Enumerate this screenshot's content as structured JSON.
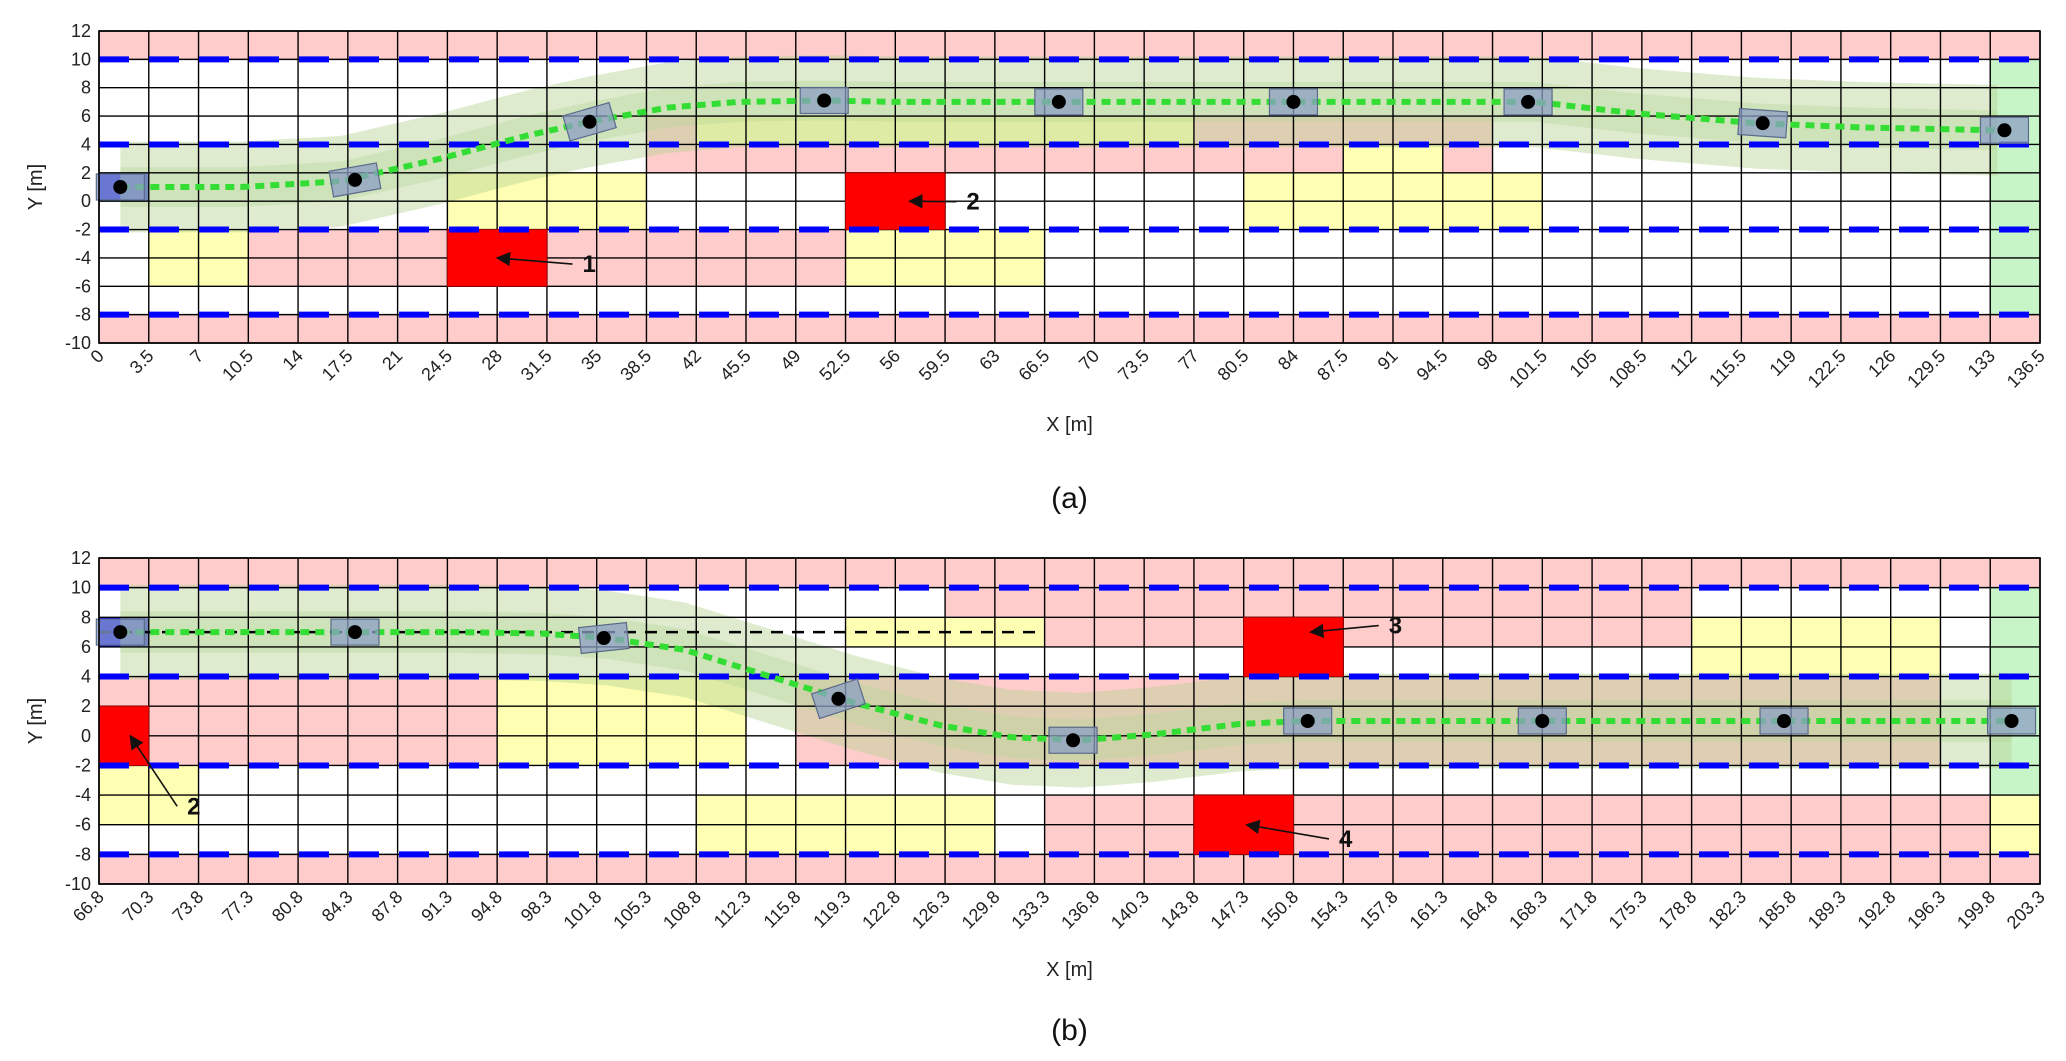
{
  "chart_data": [
    {
      "type": "heatmap",
      "panel": "a",
      "caption": "(a)",
      "xlabel": "X [m]",
      "ylabel": "Y [m]",
      "xlim": [
        0,
        136.5
      ],
      "ylim": [
        -10,
        12
      ],
      "cell_size": [
        3.5,
        2
      ],
      "xticks": [
        0,
        3.5,
        7,
        10.5,
        14,
        17.5,
        21,
        24.5,
        28,
        31.5,
        35,
        38.5,
        42,
        45.5,
        49,
        52.5,
        56,
        59.5,
        63,
        66.5,
        70,
        73.5,
        77,
        80.5,
        84,
        87.5,
        91,
        94.5,
        98,
        101.5,
        105,
        108.5,
        112,
        115.5,
        119,
        122.5,
        126,
        129.5,
        133,
        136.5
      ],
      "xtick_labels": [
        "0",
        "3.5",
        "7",
        "10.5",
        "14",
        "17.5",
        "21",
        "24.5",
        "28",
        "31.5",
        "35",
        "38.5",
        "42",
        "45.5",
        "49",
        "52.5",
        "56",
        "59.5",
        "63",
        "66.5",
        "70",
        "73.5",
        "77",
        "80.5",
        "84",
        "87.5",
        "91",
        "94.5",
        "98",
        "101.5",
        "105",
        "108.5",
        "112",
        "115.5",
        "119",
        "122.5",
        "126",
        "129.5",
        "133",
        "136.5"
      ],
      "yticks": [
        -10,
        -8,
        -6,
        -4,
        -2,
        0,
        2,
        4,
        6,
        8,
        10,
        12
      ],
      "ytick_labels": [
        "-10",
        "-8",
        "-6",
        "-4",
        "-2",
        "0",
        "2",
        "4",
        "6",
        "8",
        "10",
        "12"
      ],
      "lane_lines_y": [
        10,
        4,
        -2,
        -8
      ],
      "zones": [
        {
          "kind": "pink",
          "x": [
            0,
            136.5
          ],
          "y": [
            10,
            12
          ]
        },
        {
          "kind": "pink",
          "x": [
            0,
            136.5
          ],
          "y": [
            -10,
            -8
          ]
        },
        {
          "kind": "pink",
          "x": [
            38.5,
            98
          ],
          "y": [
            2,
            6
          ]
        },
        {
          "kind": "pink",
          "x": [
            10.5,
            59.5
          ],
          "y": [
            -6,
            -2
          ]
        },
        {
          "kind": "yellow",
          "x": [
            42,
            77
          ],
          "y": [
            4,
            6
          ]
        },
        {
          "kind": "yellow",
          "x": [
            24.5,
            38.5
          ],
          "y": [
            -2,
            2
          ]
        },
        {
          "kind": "yellow",
          "x": [
            3.5,
            10.5
          ],
          "y": [
            -6,
            -2
          ]
        },
        {
          "kind": "yellow",
          "x": [
            52.5,
            66.5
          ],
          "y": [
            -6,
            -2
          ]
        },
        {
          "kind": "yellow",
          "x": [
            80.5,
            101.5
          ],
          "y": [
            -2,
            2
          ]
        },
        {
          "kind": "yellow",
          "x": [
            87.5,
            94.5
          ],
          "y": [
            2,
            4
          ]
        },
        {
          "kind": "start",
          "x": [
            0,
            3.5
          ],
          "y": [
            0,
            2
          ]
        },
        {
          "kind": "goal",
          "x": [
            133,
            136.5
          ],
          "y": [
            -8,
            10
          ]
        },
        {
          "kind": "obstacle",
          "x": [
            24.5,
            31.5
          ],
          "y": [
            -6,
            -2
          ]
        },
        {
          "kind": "obstacle",
          "x": [
            52.5,
            59.5
          ],
          "y": [
            -2,
            2
          ]
        }
      ],
      "trajectory": {
        "x": [
          1.5,
          10,
          17,
          24,
          30,
          34.5,
          40,
          45,
          51,
          56,
          62,
          67,
          75,
          84,
          92,
          101,
          108,
          116.5,
          124,
          133.5
        ],
        "y": [
          1.0,
          1.0,
          1.4,
          3.0,
          4.6,
          5.6,
          6.6,
          7.0,
          7.1,
          7.0,
          7.0,
          7.0,
          7.0,
          7.0,
          7.0,
          7.0,
          6.2,
          5.5,
          5.2,
          5.0
        ]
      },
      "vehicle_poses": [
        {
          "x": 1.5,
          "y": 1.0,
          "angle": 0
        },
        {
          "x": 18,
          "y": 1.5,
          "angle": 10
        },
        {
          "x": 34.5,
          "y": 5.6,
          "angle": 16
        },
        {
          "x": 51,
          "y": 7.1,
          "angle": 0
        },
        {
          "x": 67.5,
          "y": 7.0,
          "angle": 0
        },
        {
          "x": 84,
          "y": 7.0,
          "angle": 0
        },
        {
          "x": 100.5,
          "y": 7.0,
          "angle": 0
        },
        {
          "x": 117,
          "y": 5.5,
          "angle": -4
        },
        {
          "x": 134,
          "y": 5.0,
          "angle": 0
        }
      ],
      "annotations": [
        {
          "label": "1",
          "point": [
            28,
            -4
          ],
          "text_at": [
            34,
            -5
          ]
        },
        {
          "label": "2",
          "point": [
            57,
            0
          ],
          "text_at": [
            61,
            -0.6
          ]
        }
      ]
    },
    {
      "type": "heatmap",
      "panel": "b",
      "caption": "(b)",
      "xlabel": "X [m]",
      "ylabel": "Y [m]",
      "xlim": [
        66.8,
        203.3
      ],
      "ylim": [
        -10,
        12
      ],
      "cell_size": [
        3.5,
        2
      ],
      "xticks": [
        66.8,
        70.3,
        73.8,
        77.3,
        80.8,
        84.3,
        87.8,
        91.3,
        94.8,
        98.3,
        101.8,
        105.3,
        108.8,
        112.3,
        115.8,
        119.3,
        122.8,
        126.3,
        129.8,
        133.3,
        136.8,
        140.3,
        143.8,
        147.3,
        150.8,
        154.3,
        157.8,
        161.3,
        164.8,
        168.3,
        171.8,
        175.3,
        178.8,
        182.3,
        185.8,
        189.3,
        192.8,
        196.3,
        199.8,
        203.3
      ],
      "xtick_labels": [
        "66.8",
        "70.3",
        "73.8",
        "77.3",
        "80.8",
        "84.3",
        "87.8",
        "91.3",
        "94.8",
        "98.3",
        "101.8",
        "105.3",
        "108.8",
        "112.3",
        "115.8",
        "119.3",
        "122.8",
        "126.3",
        "129.8",
        "133.3",
        "136.8",
        "140.3",
        "143.8",
        "147.3",
        "150.8",
        "154.3",
        "157.8",
        "161.3",
        "164.8",
        "168.3",
        "171.8",
        "175.3",
        "178.8",
        "182.3",
        "185.8",
        "189.3",
        "192.8",
        "196.3",
        "199.8",
        "203.3"
      ],
      "yticks": [
        -10,
        -8,
        -6,
        -4,
        -2,
        0,
        2,
        4,
        6,
        8,
        10,
        12
      ],
      "ytick_labels": [
        "-10",
        "-8",
        "-6",
        "-4",
        "-2",
        "0",
        "2",
        "4",
        "6",
        "8",
        "10",
        "12"
      ],
      "lane_lines_y": [
        10,
        4,
        -2,
        -8
      ],
      "zones": [
        {
          "kind": "pink",
          "x": [
            66.8,
            203.3
          ],
          "y": [
            10,
            12
          ]
        },
        {
          "kind": "pink",
          "x": [
            66.8,
            203.3
          ],
          "y": [
            -10,
            -8
          ]
        },
        {
          "kind": "pink",
          "x": [
            126.3,
            178.8
          ],
          "y": [
            6,
            10
          ]
        },
        {
          "kind": "pink",
          "x": [
            66.8,
            94.8
          ],
          "y": [
            -2,
            4
          ]
        },
        {
          "kind": "pink",
          "x": [
            115.8,
            196.3
          ],
          "y": [
            -2,
            4
          ]
        },
        {
          "kind": "pink",
          "x": [
            133.3,
            199.8
          ],
          "y": [
            -8,
            -4
          ]
        },
        {
          "kind": "yellow",
          "x": [
            119.3,
            133.3
          ],
          "y": [
            6,
            8
          ]
        },
        {
          "kind": "yellow",
          "x": [
            178.8,
            196.3
          ],
          "y": [
            4,
            8
          ]
        },
        {
          "kind": "yellow",
          "x": [
            94.8,
            112.3
          ],
          "y": [
            -2,
            4
          ]
        },
        {
          "kind": "yellow",
          "x": [
            66.8,
            73.8
          ],
          "y": [
            -6,
            -2
          ]
        },
        {
          "kind": "yellow",
          "x": [
            108.8,
            129.8
          ],
          "y": [
            -8,
            -4
          ]
        },
        {
          "kind": "yellow",
          "x": [
            199.8,
            203.3
          ],
          "y": [
            -8,
            -4
          ]
        },
        {
          "kind": "start",
          "x": [
            66.8,
            70.3
          ],
          "y": [
            6,
            8
          ]
        },
        {
          "kind": "goal",
          "x": [
            199.8,
            203.3
          ],
          "y": [
            -4,
            10
          ]
        },
        {
          "kind": "obstacle",
          "x": [
            66.8,
            70.3
          ],
          "y": [
            -2,
            2
          ]
        },
        {
          "kind": "obstacle",
          "x": [
            147.3,
            154.3
          ],
          "y": [
            4,
            8
          ]
        },
        {
          "kind": "obstacle",
          "x": [
            143.8,
            150.8
          ],
          "y": [
            -8,
            -4
          ]
        }
      ],
      "reference_line": {
        "x": [
          66.8,
          133.3
        ],
        "y": [
          7,
          7
        ]
      },
      "trajectory": {
        "x": [
          68.3,
          78,
          85,
          92,
          98,
          102.5,
          108,
          114,
          120,
          126,
          131,
          135.8,
          141,
          147,
          151.5,
          160,
          168.5,
          176,
          185,
          201.3
        ],
        "y": [
          7.0,
          7.0,
          7.0,
          7.0,
          6.9,
          6.6,
          5.8,
          4.0,
          2.2,
          0.7,
          -0.1,
          -0.3,
          0.1,
          0.8,
          1.0,
          1.0,
          1.0,
          1.0,
          1.0,
          1.0
        ]
      },
      "vehicle_poses": [
        {
          "x": 68.3,
          "y": 7.0,
          "angle": 0
        },
        {
          "x": 84.8,
          "y": 7.0,
          "angle": 0
        },
        {
          "x": 102.3,
          "y": 6.6,
          "angle": 6
        },
        {
          "x": 118.8,
          "y": 2.5,
          "angle": 18
        },
        {
          "x": 135.3,
          "y": -0.3,
          "angle": 0
        },
        {
          "x": 151.8,
          "y": 1.0,
          "angle": 0
        },
        {
          "x": 168.3,
          "y": 1.0,
          "angle": 0
        },
        {
          "x": 185.3,
          "y": 1.0,
          "angle": 0
        },
        {
          "x": 201.3,
          "y": 1.0,
          "angle": 0
        }
      ],
      "annotations": [
        {
          "label": "2",
          "point": [
            69,
            0
          ],
          "text_at": [
            73,
            -5.3
          ]
        },
        {
          "label": "3",
          "point": [
            152,
            7
          ],
          "text_at": [
            157.5,
            6.9
          ]
        },
        {
          "label": "4",
          "point": [
            147.5,
            -6
          ],
          "text_at": [
            154,
            -7.5
          ]
        }
      ]
    }
  ],
  "colors": {
    "pink": "#ffcccc",
    "yellow": "#ffffb3",
    "start": "#0000ff",
    "goal": "#c8f5c8",
    "obstacle": "#ff0000",
    "lane": "#0000ff",
    "trajectory": "#33dd33",
    "corridor": "#b5d395",
    "vehicle": "#8c9fc4",
    "grid": "#000000"
  }
}
